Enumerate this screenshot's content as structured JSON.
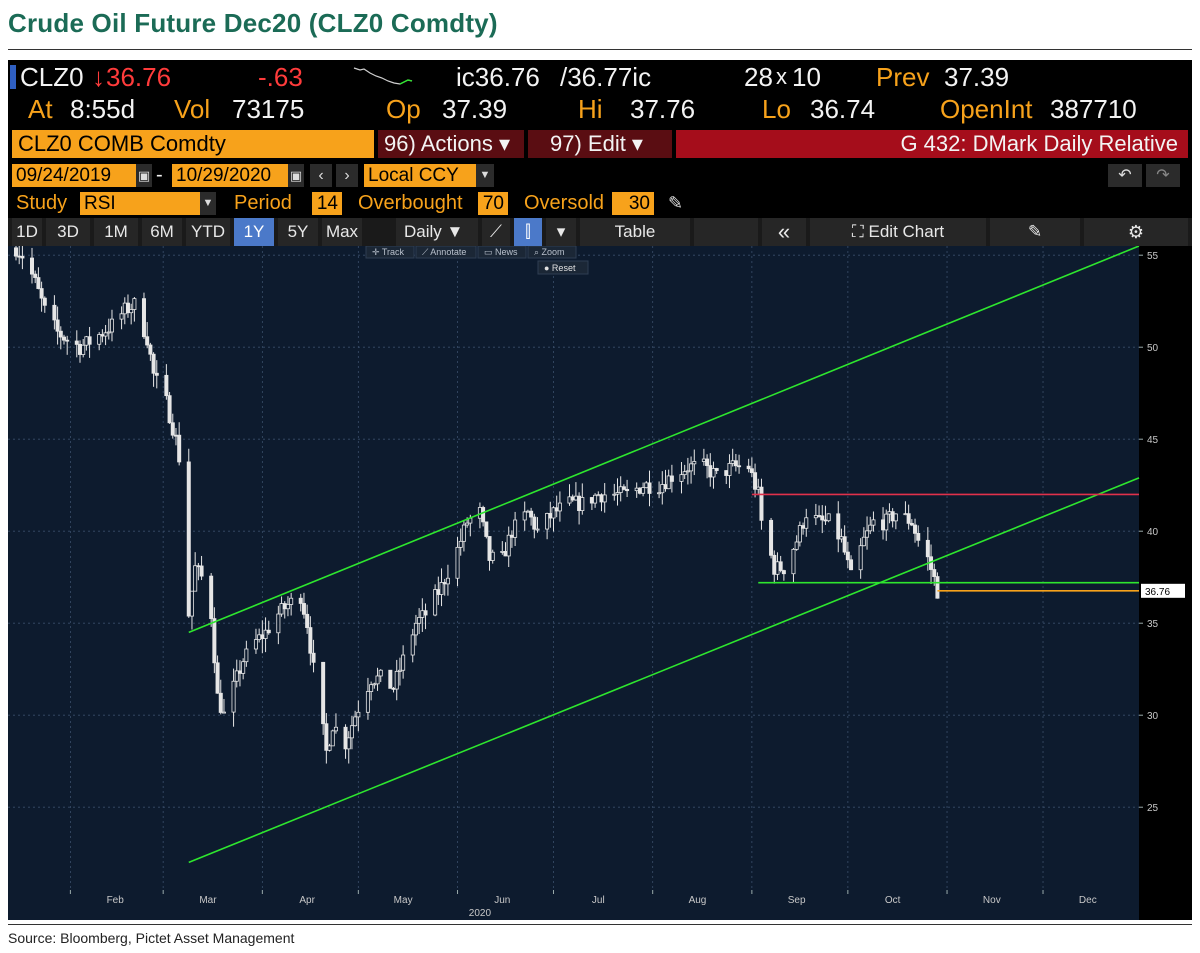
{
  "page": {
    "title": "Crude Oil Future Dec20 (CLZ0 Comdty)",
    "source": "Source: Bloomberg, Pictet Asset Management"
  },
  "quote": {
    "ticker": "CLZ0",
    "arrow": "↓",
    "last": "36.76",
    "change": "-.63",
    "bid": "ic36.76",
    "ask": "/36.77ic",
    "size_bid": "28",
    "size_sep": "x",
    "size_ask": "10",
    "prev_label": "Prev",
    "prev": "37.39",
    "at_label": "At",
    "time": "8:55d",
    "vol_label": "Vol",
    "vol": "73175",
    "op_label": "Op",
    "op": "37.39",
    "hi_label": "Hi",
    "hi": "37.76",
    "lo_label": "Lo",
    "lo": "36.74",
    "oi_label": "OpenInt",
    "oi": "387710"
  },
  "toolbar": {
    "security": "CLZ0 COMB Comdty",
    "actions": "96) Actions ▾",
    "edit": "97) Edit ▾",
    "study_name": "G 432: DMark Daily Relative",
    "date_from": "09/24/2019",
    "date_sep": "-",
    "date_to": "10/29/2020",
    "currency": "Local CCY",
    "study_label": "Study",
    "study_value": "RSI",
    "period_label": "Period",
    "period_value": "14",
    "overbought_label": "Overbought",
    "overbought_value": "70",
    "oversold_label": "Oversold",
    "oversold_value": "30"
  },
  "range_tabs": [
    "1D",
    "3D",
    "1M",
    "6M",
    "YTD",
    "1Y",
    "5Y",
    "Max"
  ],
  "active_range": "1Y",
  "interval": "Daily ▼",
  "table_label": "Table",
  "edit_chart_label": "Edit Chart",
  "chart_tools": {
    "track": "Track",
    "annotate": "Annotate",
    "news": "News",
    "zoom": "Zoom",
    "reset": "Reset"
  },
  "colors": {
    "background": "#000000",
    "chart_bg": "#0d1b2e",
    "channel": "#2ee62e",
    "resistance": "#e0314b",
    "support": "#2ee62e",
    "last_line": "#f7a21b",
    "candle": "#e6e6e6",
    "accent_orange": "#f7a21b",
    "title_green": "#1b6b56"
  },
  "chart_data": {
    "type": "candlestick",
    "title": "",
    "y_ticks": [
      25,
      30,
      35,
      40,
      45,
      50,
      55
    ],
    "ylim": [
      20.5,
      55.5
    ],
    "x_month_labels": [
      "Feb",
      "Mar",
      "Apr",
      "May",
      "Jun",
      "Jul",
      "Aug",
      "Sep",
      "Oct",
      "Nov",
      "Dec"
    ],
    "x_year_label": "2020",
    "last_value_label": "36.76",
    "series": [
      {
        "name": "CLZ0",
        "close_path": [
          [
            "2020-01-15",
            55.4
          ],
          [
            "2020-01-18",
            54.8
          ],
          [
            "2020-01-21",
            53.5
          ],
          [
            "2020-01-24",
            52.0
          ],
          [
            "2020-01-28",
            50.8
          ],
          [
            "2020-01-31",
            50.4
          ],
          [
            "2020-02-04",
            50.0
          ],
          [
            "2020-02-07",
            50.3
          ],
          [
            "2020-02-11",
            50.8
          ],
          [
            "2020-02-14",
            51.2
          ],
          [
            "2020-02-18",
            52.0
          ],
          [
            "2020-02-21",
            52.3
          ],
          [
            "2020-02-25",
            50.5
          ],
          [
            "2020-02-27",
            48.5
          ],
          [
            "2020-03-02",
            47.0
          ],
          [
            "2020-03-05",
            45.0
          ],
          [
            "2020-03-06",
            44.0
          ],
          [
            "2020-03-09",
            35.5
          ],
          [
            "2020-03-11",
            38.0
          ],
          [
            "2020-03-13",
            37.5
          ],
          [
            "2020-03-16",
            35.5
          ],
          [
            "2020-03-18",
            31.0
          ],
          [
            "2020-03-20",
            30.0
          ],
          [
            "2020-03-23",
            31.5
          ],
          [
            "2020-03-26",
            33.0
          ],
          [
            "2020-03-30",
            34.0
          ],
          [
            "2020-04-02",
            34.5
          ],
          [
            "2020-04-06",
            35.5
          ],
          [
            "2020-04-09",
            36.0
          ],
          [
            "2020-04-13",
            36.5
          ],
          [
            "2020-04-15",
            35.0
          ],
          [
            "2020-04-17",
            32.5
          ],
          [
            "2020-04-21",
            28.0
          ],
          [
            "2020-04-23",
            29.5
          ],
          [
            "2020-04-27",
            28.5
          ],
          [
            "2020-04-30",
            30.0
          ],
          [
            "2020-05-05",
            32.0
          ],
          [
            "2020-05-08",
            32.0
          ],
          [
            "2020-05-12",
            31.5
          ],
          [
            "2020-05-15",
            33.0
          ],
          [
            "2020-05-19",
            35.0
          ],
          [
            "2020-05-22",
            35.5
          ],
          [
            "2020-05-27",
            37.0
          ],
          [
            "2020-06-01",
            39.0
          ],
          [
            "2020-06-04",
            40.5
          ],
          [
            "2020-06-08",
            41.0
          ],
          [
            "2020-06-11",
            38.5
          ],
          [
            "2020-06-15",
            38.5
          ],
          [
            "2020-06-18",
            40.0
          ],
          [
            "2020-06-23",
            41.0
          ],
          [
            "2020-06-26",
            40.0
          ],
          [
            "2020-07-01",
            41.0
          ],
          [
            "2020-07-06",
            41.5
          ],
          [
            "2020-07-10",
            41.5
          ],
          [
            "2020-07-15",
            42.0
          ],
          [
            "2020-07-20",
            42.0
          ],
          [
            "2020-07-24",
            42.0
          ],
          [
            "2020-07-29",
            42.5
          ],
          [
            "2020-08-03",
            42.5
          ],
          [
            "2020-08-07",
            43.0
          ],
          [
            "2020-08-12",
            43.5
          ],
          [
            "2020-08-17",
            43.5
          ],
          [
            "2020-08-21",
            43.0
          ],
          [
            "2020-08-26",
            43.5
          ],
          [
            "2020-08-31",
            43.5
          ],
          [
            "2020-09-03",
            42.0
          ],
          [
            "2020-09-04",
            40.5
          ],
          [
            "2020-09-08",
            38.0
          ],
          [
            "2020-09-11",
            38.0
          ],
          [
            "2020-09-15",
            39.5
          ],
          [
            "2020-09-18",
            41.0
          ],
          [
            "2020-09-22",
            40.5
          ],
          [
            "2020-09-25",
            40.5
          ],
          [
            "2020-09-29",
            39.5
          ],
          [
            "2020-10-02",
            37.5
          ],
          [
            "2020-10-06",
            39.5
          ],
          [
            "2020-10-09",
            40.5
          ],
          [
            "2020-10-13",
            40.5
          ],
          [
            "2020-10-16",
            41.0
          ],
          [
            "2020-10-21",
            40.5
          ],
          [
            "2020-10-23",
            39.5
          ],
          [
            "2020-10-26",
            38.5
          ],
          [
            "2020-10-28",
            37.4
          ],
          [
            "2020-10-29",
            36.76
          ]
        ]
      }
    ],
    "lines": [
      {
        "name": "channel-upper",
        "from": [
          "2020-03-09",
          34.5
        ],
        "to": [
          "2020-12-31",
          55.5
        ]
      },
      {
        "name": "channel-lower",
        "from": [
          "2020-03-09",
          22.0
        ],
        "to": [
          "2020-12-31",
          42.9
        ]
      },
      {
        "name": "resistance",
        "from": [
          "2020-09-01",
          42.0
        ],
        "to": [
          "2020-12-31",
          42.0
        ]
      },
      {
        "name": "support",
        "from": [
          "2020-09-03",
          37.2
        ],
        "to": [
          "2020-12-31",
          37.2
        ]
      },
      {
        "name": "last-price",
        "from": [
          "2020-10-29",
          36.76
        ],
        "to": [
          "2020-12-31",
          36.76
        ]
      }
    ]
  }
}
